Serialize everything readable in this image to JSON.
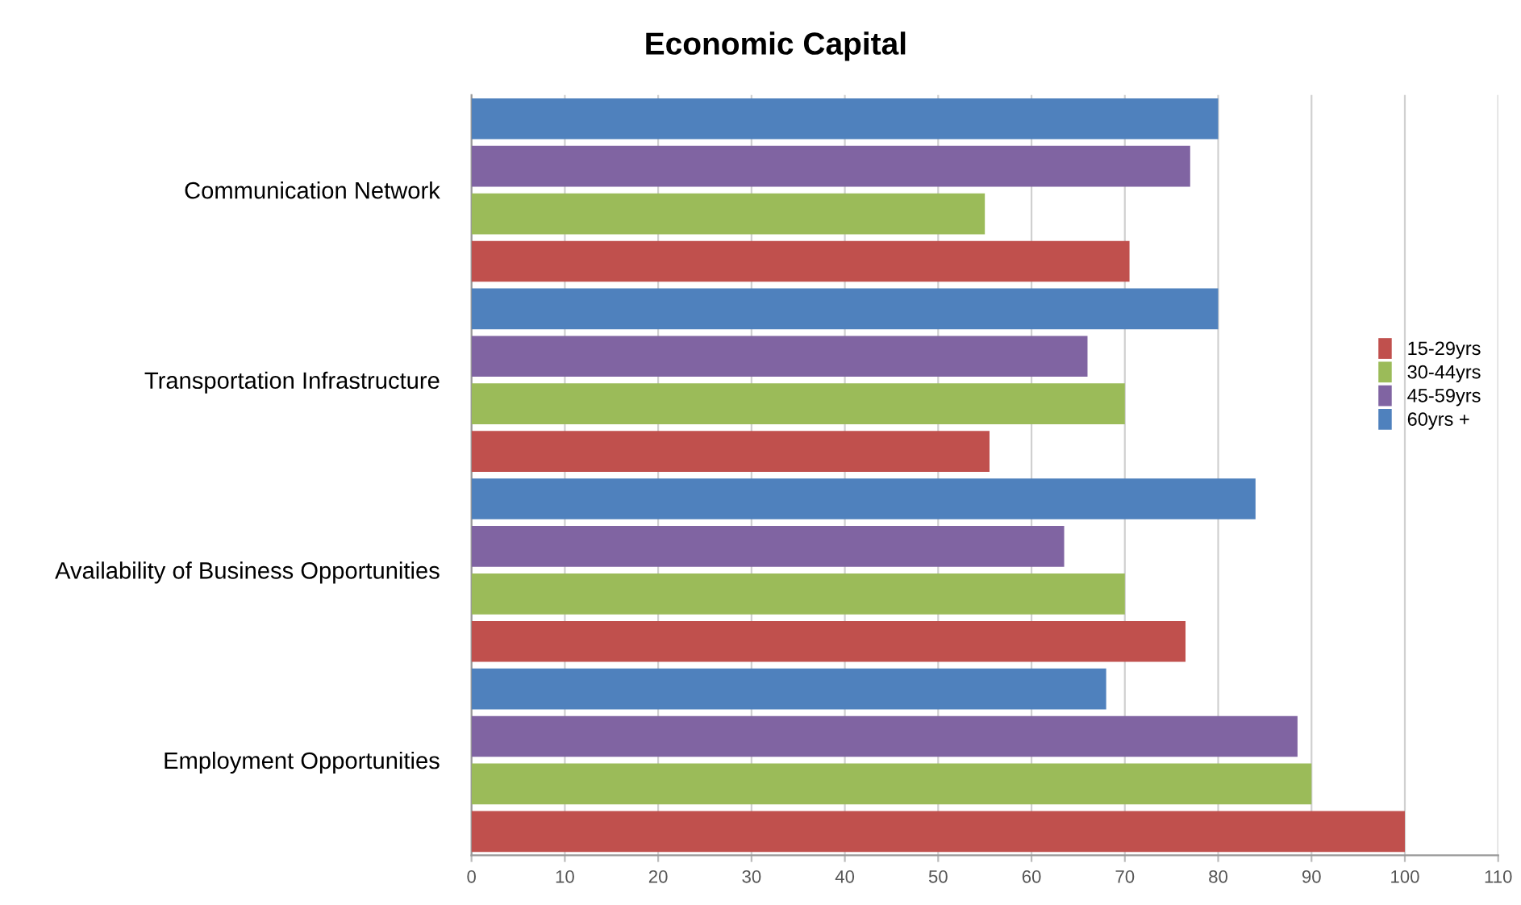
{
  "chart_data": {
    "type": "bar",
    "orientation": "horizontal",
    "title": "Economic Capital",
    "categories": [
      "Communication Network",
      "Transportation Infrastructure",
      "Availability of Business Opportunities",
      "Employment Opportunities"
    ],
    "series": [
      {
        "name": "15-29yrs",
        "color": "#c0504d",
        "values": [
          70.5,
          55.5,
          76.5,
          100
        ]
      },
      {
        "name": "30-44yrs",
        "color": "#9bbb59",
        "values": [
          55,
          70,
          70,
          90
        ]
      },
      {
        "name": "45-59yrs",
        "color": "#8064a2",
        "values": [
          77,
          66,
          63.5,
          88.5
        ]
      },
      {
        "name": "60yrs +",
        "color": "#4f81bd",
        "values": [
          80,
          80,
          84,
          68
        ]
      }
    ],
    "xlim": [
      0,
      110
    ],
    "xticks": [
      0,
      10,
      20,
      30,
      40,
      50,
      60,
      70,
      80,
      90,
      100,
      110
    ],
    "grid": "x",
    "legend": "right"
  }
}
